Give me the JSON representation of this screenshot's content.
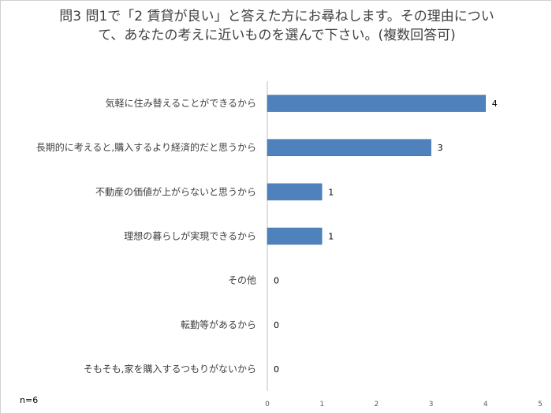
{
  "chart_data": {
    "type": "bar",
    "orientation": "horizontal",
    "title": "問3 問1で「2 賃貸が良い」と答えた方にお尋ねします。その理由について、あなたの考えに近いものを選んで下さい。(複数回答可)",
    "categories": [
      "気軽に住み替えることができるから",
      "長期的に考えると,購入するより経済的だと思うから",
      "不動産の価値が上がらないと思うから",
      "理想の暮らしが実現できるから",
      "その他",
      "転勤等があるから",
      "そもそも,家を購入するつもりがないから"
    ],
    "values": [
      4,
      3,
      1,
      1,
      0,
      0,
      0
    ],
    "xlim": [
      0,
      5
    ],
    "x_ticks": [
      0,
      1,
      2,
      3,
      4,
      5
    ],
    "data_labels": true,
    "grid": false,
    "legend": "none",
    "note": "n=6",
    "bar_color": "#4f81bd"
  }
}
